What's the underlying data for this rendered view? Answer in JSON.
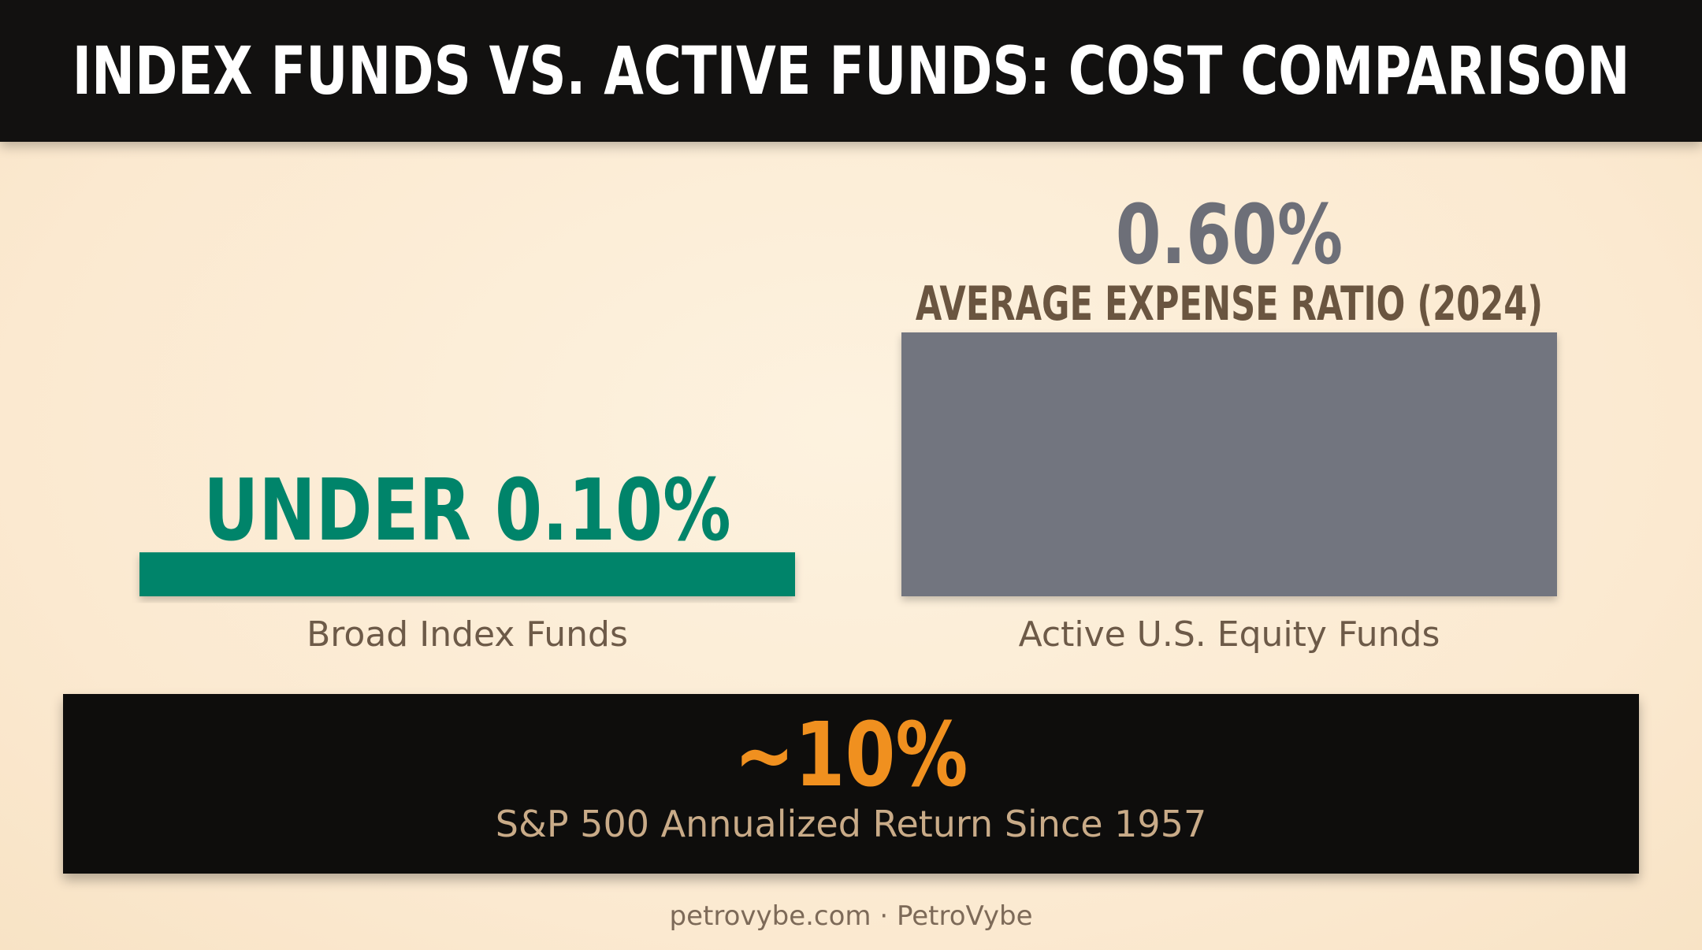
{
  "header": {
    "title": "INDEX FUNDS VS. ACTIVE FUNDS: COST COMPARISON"
  },
  "chart_data": {
    "type": "bar",
    "title": "INDEX FUNDS VS. ACTIVE FUNDS: COST COMPARISON",
    "categories": [
      "Broad Index Funds",
      "Active U.S. Equity Funds"
    ],
    "values": [
      0.1,
      0.6
    ],
    "value_labels": [
      "UNDER 0.10%",
      "0.60%"
    ],
    "value_sublabels": [
      "",
      "AVERAGE EXPENSE RATIO (2024)"
    ],
    "colors": [
      "#00846a",
      "#72757f"
    ],
    "label_colors": [
      "#00846a",
      "#6d6f78"
    ],
    "sublabel_color": "#6a5540",
    "category_label_color": "#6d5a48",
    "xlabel": "",
    "ylabel": "",
    "ylim": [
      0,
      0.6
    ],
    "grid": false,
    "legend": "none"
  },
  "stat": {
    "value": "~10%",
    "caption": "S&P 500 Annualized Return Since 1957"
  },
  "credit": "petrovybe.com · PetroVybe"
}
